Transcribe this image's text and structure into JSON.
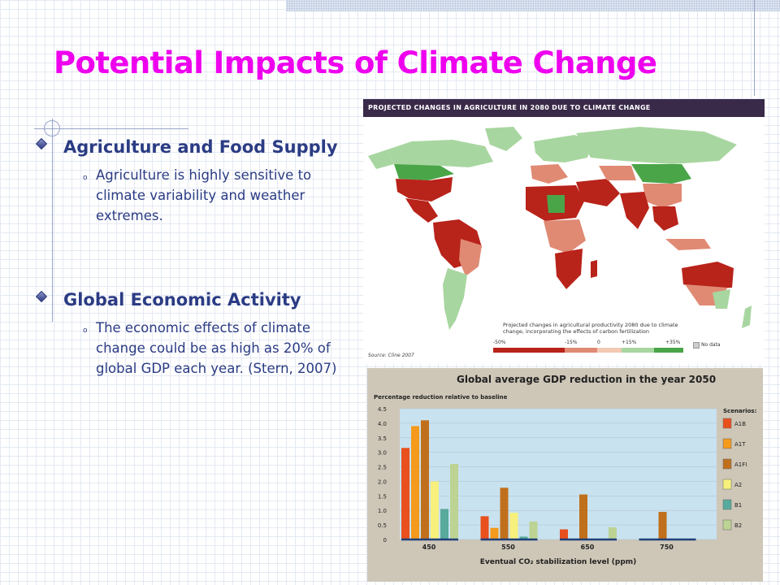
{
  "slide": {
    "title": "Potential Impacts of Climate Change",
    "title_color": "#ee00ee",
    "text_color": "#2b3c84",
    "bullets": [
      {
        "heading": "Agriculture and Food Supply",
        "sub": "Agriculture is highly sensitive to climate variability and weather extremes."
      },
      {
        "heading": "Global Economic Activity",
        "sub": "The economic effects of climate change could be as high as 20% of global GDP each year. (Stern, 2007)"
      }
    ],
    "sub_marker": "o"
  },
  "map": {
    "header": "PROJECTED CHANGES IN AGRICULTURE IN 2080 DUE TO CLIMATE CHANGE",
    "caption": "Projected changes in agricultural productivity 2080 due to climate change, incorporating the effects of carbon fertilization",
    "source": "Source: Cline 2007",
    "legend": {
      "labels": [
        "-50%",
        "-15%",
        "0",
        "+15%",
        "+35%"
      ],
      "no_data": "No data",
      "colors": [
        "#b8231a",
        "#e08a74",
        "#f3c9b4",
        "#a8d6a0",
        "#4aa548"
      ],
      "no_data_color": "#cccccc"
    }
  },
  "chart_data": {
    "type": "bar",
    "title": "Global average GDP reduction in the year 2050",
    "ylabel": "Percentage reduction relative to baseline",
    "xlabel": "Eventual CO₂ stabilization level (ppm)",
    "ylim": [
      0,
      4.5
    ],
    "yticks": [
      "0",
      "0.5",
      "1.0",
      "1.5",
      "2.0",
      "2.5",
      "3.0",
      "3.5",
      "4.0",
      "4.5"
    ],
    "categories": [
      "450",
      "550",
      "650",
      "750"
    ],
    "legend_title": "Scenarios:",
    "series": [
      {
        "name": "A1B",
        "color": "#e8501e",
        "values": [
          3.15,
          0.8,
          0.35,
          null
        ]
      },
      {
        "name": "A1T",
        "color": "#f59a1c",
        "values": [
          3.9,
          0.4,
          null,
          null
        ]
      },
      {
        "name": "A1FI",
        "color": "#c0701c",
        "values": [
          4.1,
          1.78,
          1.55,
          0.95
        ]
      },
      {
        "name": "A2",
        "color": "#f7f07c",
        "values": [
          2.0,
          0.92,
          null,
          null
        ]
      },
      {
        "name": "B1",
        "color": "#58aa9c",
        "values": [
          1.05,
          0.1,
          null,
          null
        ]
      },
      {
        "name": "B2",
        "color": "#bcd394",
        "values": [
          2.6,
          0.62,
          0.42,
          null
        ]
      }
    ],
    "colors": {
      "frame_bg": "#cec7b8",
      "plot_bg": "#c9e2ef",
      "baseline": "#1e3f7a"
    }
  }
}
